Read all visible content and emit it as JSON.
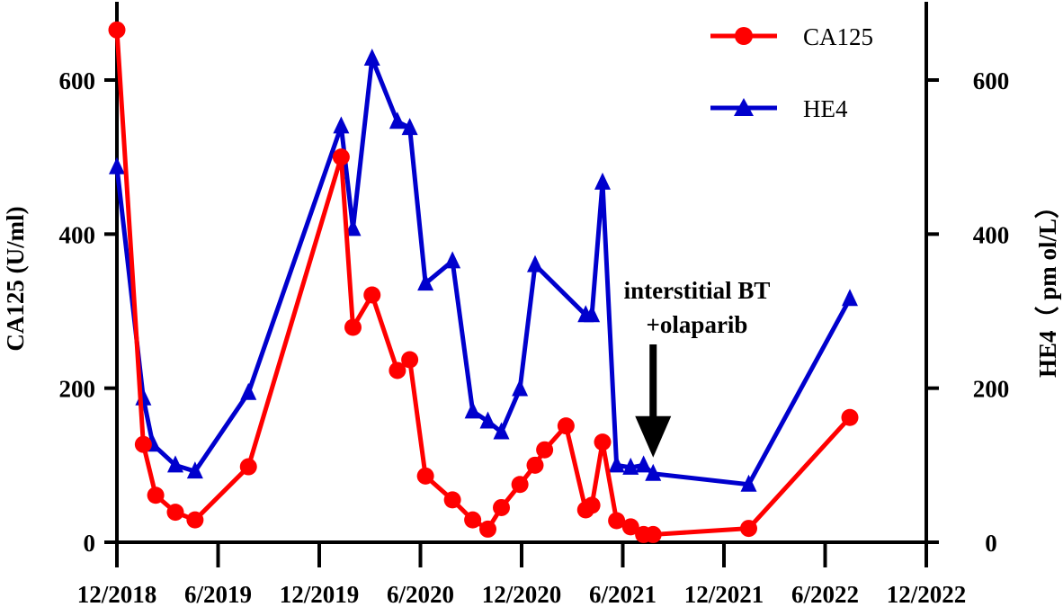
{
  "chart_data": {
    "type": "line",
    "title": "",
    "xlabel": "",
    "x_ticks": [
      "12/2018",
      "6/2019",
      "12/2019",
      "6/2020",
      "12/2020",
      "6/2021",
      "12/2021",
      "6/2022",
      "12/2022"
    ],
    "x_range": [
      "2018-12",
      "2022-12"
    ],
    "y_left": {
      "label": "CA125 (U/ml)",
      "range": [
        0,
        700
      ],
      "ticks": [
        "0",
        "200",
        "400",
        "600"
      ]
    },
    "y_right": {
      "label": "HE4（ pm ol/L）",
      "range": [
        0,
        700
      ],
      "ticks": [
        "0",
        "200",
        "400",
        "600"
      ]
    },
    "legend": {
      "position": "top-right"
    },
    "series": [
      {
        "name": "CA125",
        "axis": "left",
        "color": "#ff0000",
        "marker": "circle",
        "points": [
          {
            "x": "2018-12-01",
            "y": 665
          },
          {
            "x": "2019-01-18",
            "y": 127
          },
          {
            "x": "2019-02-10",
            "y": 61
          },
          {
            "x": "2019-03-15",
            "y": 39
          },
          {
            "x": "2019-04-20",
            "y": 29
          },
          {
            "x": "2019-07-25",
            "y": 98
          },
          {
            "x": "2020-01-10",
            "y": 500
          },
          {
            "x": "2020-01-31",
            "y": 279
          },
          {
            "x": "2020-03-05",
            "y": 321
          },
          {
            "x": "2020-04-20",
            "y": 223
          },
          {
            "x": "2020-05-12",
            "y": 237
          },
          {
            "x": "2020-06-10",
            "y": 86
          },
          {
            "x": "2020-07-28",
            "y": 55
          },
          {
            "x": "2020-09-04",
            "y": 29
          },
          {
            "x": "2020-10-01",
            "y": 17
          },
          {
            "x": "2020-10-25",
            "y": 45
          },
          {
            "x": "2020-11-28",
            "y": 75
          },
          {
            "x": "2020-12-25",
            "y": 100
          },
          {
            "x": "2021-01-12",
            "y": 120
          },
          {
            "x": "2021-02-20",
            "y": 151
          },
          {
            "x": "2021-03-25",
            "y": 42
          },
          {
            "x": "2021-04-06",
            "y": 48
          },
          {
            "x": "2021-04-25",
            "y": 130
          },
          {
            "x": "2021-05-20",
            "y": 28
          },
          {
            "x": "2021-06-15",
            "y": 20
          },
          {
            "x": "2021-07-08",
            "y": 10
          },
          {
            "x": "2021-07-25",
            "y": 10
          },
          {
            "x": "2022-01-15",
            "y": 18
          },
          {
            "x": "2022-07-15",
            "y": 162
          }
        ]
      },
      {
        "name": "HE4",
        "axis": "right",
        "color": "#0000cd",
        "marker": "triangle",
        "points": [
          {
            "x": "2018-12-01",
            "y": 487
          },
          {
            "x": "2019-01-18",
            "y": 187
          },
          {
            "x": "2019-02-05",
            "y": 127
          },
          {
            "x": "2019-03-15",
            "y": 100
          },
          {
            "x": "2019-04-20",
            "y": 92
          },
          {
            "x": "2019-07-25",
            "y": 194
          },
          {
            "x": "2020-01-10",
            "y": 540
          },
          {
            "x": "2020-01-31",
            "y": 407
          },
          {
            "x": "2020-03-05",
            "y": 628
          },
          {
            "x": "2020-04-20",
            "y": 546
          },
          {
            "x": "2020-05-12",
            "y": 538
          },
          {
            "x": "2020-06-10",
            "y": 336
          },
          {
            "x": "2020-07-28",
            "y": 365
          },
          {
            "x": "2020-09-04",
            "y": 170
          },
          {
            "x": "2020-10-01",
            "y": 157
          },
          {
            "x": "2020-10-25",
            "y": 143
          },
          {
            "x": "2020-11-28",
            "y": 199
          },
          {
            "x": "2020-12-25",
            "y": 360
          },
          {
            "x": "2021-03-25",
            "y": 295
          },
          {
            "x": "2021-04-06",
            "y": 295
          },
          {
            "x": "2021-04-25",
            "y": 467
          },
          {
            "x": "2021-05-20",
            "y": 100
          },
          {
            "x": "2021-06-15",
            "y": 97
          },
          {
            "x": "2021-07-08",
            "y": 100
          },
          {
            "x": "2021-07-25",
            "y": 89
          },
          {
            "x": "2022-01-15",
            "y": 75
          },
          {
            "x": "2022-07-15",
            "y": 316
          }
        ]
      }
    ],
    "annotations": [
      {
        "lines": [
          "interstitial BT",
          "+olaparib"
        ],
        "target": {
          "x": "2021-07-25",
          "y": 110
        },
        "marker": "down-arrow"
      }
    ]
  }
}
